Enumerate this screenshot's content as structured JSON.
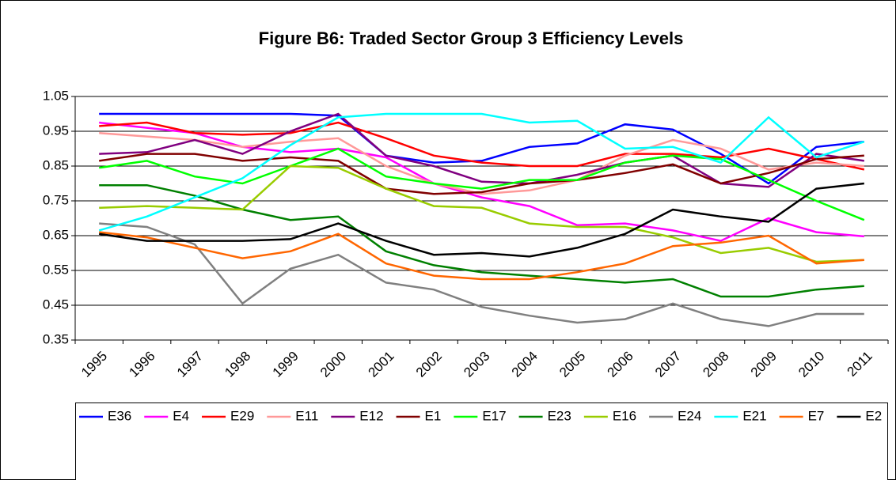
{
  "chart_data": {
    "type": "line",
    "title": "Figure B6: Traded Sector Group 3 Efficiency Levels",
    "categories": [
      "1995",
      "1996",
      "1997",
      "1998",
      "1999",
      "2000",
      "2001",
      "2002",
      "2003",
      "2004",
      "2005",
      "2006",
      "2007",
      "2008",
      "2009",
      "2010",
      "2011"
    ],
    "ylim": [
      0.35,
      1.05
    ],
    "yticks": [
      0.35,
      0.45,
      0.55,
      0.65,
      0.75,
      0.85,
      0.95,
      1.05
    ],
    "grid": true,
    "legend": "bottom",
    "series": [
      {
        "name": "E36",
        "color": "#0000ff",
        "values": [
          1.0,
          1.0,
          1.0,
          1.0,
          1.0,
          0.995,
          0.88,
          0.86,
          0.865,
          0.905,
          0.915,
          0.97,
          0.955,
          0.885,
          0.8,
          0.905,
          0.92
        ]
      },
      {
        "name": "E4",
        "color": "#ff00ff",
        "values": [
          0.975,
          0.96,
          0.945,
          0.905,
          0.89,
          0.9,
          0.875,
          0.8,
          0.76,
          0.735,
          0.68,
          0.685,
          0.665,
          0.635,
          0.7,
          0.66,
          0.648
        ]
      },
      {
        "name": "E29",
        "color": "#ff0000",
        "values": [
          0.965,
          0.975,
          0.945,
          0.94,
          0.945,
          0.975,
          0.93,
          0.88,
          0.86,
          0.85,
          0.85,
          0.885,
          0.885,
          0.875,
          0.9,
          0.87,
          0.84
        ]
      },
      {
        "name": "E11",
        "color": "#ff9999",
        "values": [
          0.945,
          0.935,
          0.925,
          0.905,
          0.92,
          0.93,
          0.85,
          0.8,
          0.77,
          0.78,
          0.81,
          0.88,
          0.925,
          0.9,
          0.84,
          0.86,
          0.85
        ]
      },
      {
        "name": "E12",
        "color": "#800080",
        "values": [
          0.885,
          0.89,
          0.925,
          0.885,
          0.95,
          1.0,
          0.88,
          0.85,
          0.805,
          0.8,
          0.825,
          0.86,
          0.88,
          0.8,
          0.79,
          0.885,
          0.865
        ]
      },
      {
        "name": "E1",
        "color": "#800000",
        "values": [
          0.865,
          0.885,
          0.885,
          0.865,
          0.875,
          0.865,
          0.785,
          0.77,
          0.775,
          0.8,
          0.81,
          0.83,
          0.855,
          0.8,
          0.83,
          0.87,
          0.88
        ]
      },
      {
        "name": "E17",
        "color": "#00ff00",
        "values": [
          0.845,
          0.865,
          0.82,
          0.8,
          0.85,
          0.9,
          0.82,
          0.8,
          0.785,
          0.81,
          0.81,
          0.86,
          0.88,
          0.87,
          0.81,
          0.75,
          0.695
        ]
      },
      {
        "name": "E23",
        "color": "#008000",
        "values": [
          0.795,
          0.795,
          0.765,
          0.725,
          0.695,
          0.705,
          0.605,
          0.565,
          0.545,
          0.535,
          0.525,
          0.515,
          0.525,
          0.475,
          0.475,
          0.495,
          0.505
        ]
      },
      {
        "name": "E16",
        "color": "#99cc00",
        "values": [
          0.73,
          0.735,
          0.73,
          0.725,
          0.85,
          0.845,
          0.785,
          0.735,
          0.73,
          0.685,
          0.675,
          0.675,
          0.645,
          0.6,
          0.615,
          0.575,
          0.58
        ]
      },
      {
        "name": "E24",
        "color": "#808080",
        "values": [
          0.685,
          0.675,
          0.625,
          0.455,
          0.555,
          0.595,
          0.515,
          0.495,
          0.445,
          0.42,
          0.4,
          0.41,
          0.455,
          0.41,
          0.39,
          0.425,
          0.425
        ]
      },
      {
        "name": "E21",
        "color": "#00ffff",
        "values": [
          0.665,
          0.705,
          0.76,
          0.815,
          0.91,
          0.99,
          1.0,
          1.0,
          1.0,
          0.975,
          0.98,
          0.9,
          0.905,
          0.86,
          0.99,
          0.875,
          0.92
        ]
      },
      {
        "name": "E7",
        "color": "#ff6600",
        "values": [
          0.66,
          0.645,
          0.615,
          0.585,
          0.605,
          0.655,
          0.57,
          0.535,
          0.525,
          0.525,
          0.545,
          0.57,
          0.62,
          0.63,
          0.65,
          0.57,
          0.58
        ]
      },
      {
        "name": "E2",
        "color": "#000000",
        "values": [
          0.655,
          0.635,
          0.635,
          0.635,
          0.64,
          0.685,
          0.635,
          0.595,
          0.6,
          0.59,
          0.615,
          0.655,
          0.725,
          0.705,
          0.69,
          0.785,
          0.8
        ]
      }
    ]
  }
}
